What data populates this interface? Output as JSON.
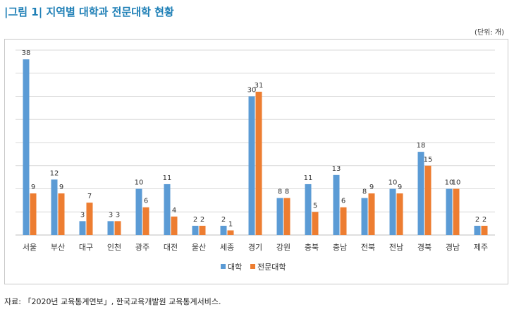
{
  "title": "|그림 1| 지역별 대학과 전문대학 현황",
  "unit_note": "(단위: 개)",
  "source_note": "자료: 「2020년 교육통계연보」, 한국교육개발원 교육통계서비스.",
  "colors": {
    "series_1": "#5b9bd5",
    "series_2": "#ed7d31",
    "title": "#1e7fb6",
    "grid": "#d9d9d9"
  },
  "chart_data": {
    "type": "bar",
    "title": "",
    "xlabel": "",
    "ylabel": "",
    "ylim": [
      0,
      40
    ],
    "grid": true,
    "legend_position": "bottom",
    "categories": [
      "서울",
      "부산",
      "대구",
      "인천",
      "광주",
      "대전",
      "울산",
      "세종",
      "경기",
      "강원",
      "충북",
      "충남",
      "전북",
      "전남",
      "경북",
      "경남",
      "제주"
    ],
    "series": [
      {
        "name": "대학",
        "color": "#5b9bd5",
        "values": [
          38,
          12,
          3,
          3,
          10,
          11,
          2,
          2,
          30,
          8,
          11,
          13,
          8,
          10,
          18,
          10,
          2
        ]
      },
      {
        "name": "전문대학",
        "color": "#ed7d31",
        "values": [
          9,
          9,
          7,
          3,
          6,
          4,
          2,
          1,
          31,
          8,
          5,
          6,
          9,
          9,
          15,
          10,
          2
        ]
      }
    ]
  }
}
